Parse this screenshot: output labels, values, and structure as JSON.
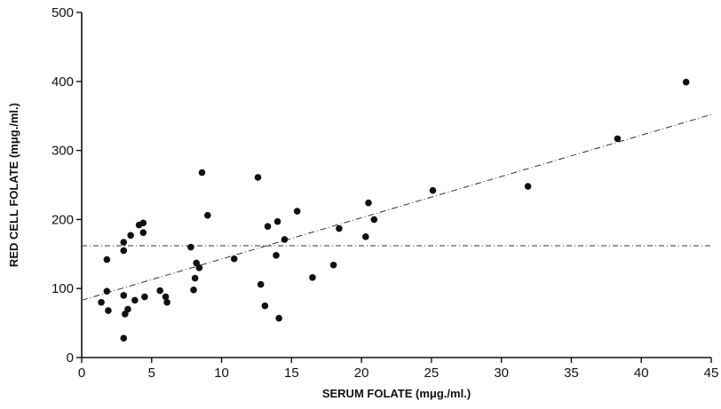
{
  "chart_data": {
    "type": "scatter",
    "xlabel": "SERUM FOLATE (mμg./ml.)",
    "ylabel": "RED CELL FOLATE (mμg./ml.)",
    "xlim": [
      0,
      45
    ],
    "ylim": [
      0,
      500
    ],
    "x_ticks": [
      0,
      5,
      10,
      15,
      20,
      25,
      30,
      35,
      40,
      45
    ],
    "y_ticks": [
      0,
      100,
      200,
      300,
      400,
      500
    ],
    "x_tick_labels": [
      "0",
      "5",
      "10",
      "15",
      "20",
      "25",
      "30",
      "35",
      "40",
      "45"
    ],
    "y_tick_labels": [
      "0",
      "100",
      "200",
      "300",
      "400",
      "500"
    ],
    "grid": false,
    "points": [
      {
        "x": 1.4,
        "y": 80
      },
      {
        "x": 1.8,
        "y": 142
      },
      {
        "x": 1.8,
        "y": 96
      },
      {
        "x": 1.9,
        "y": 68
      },
      {
        "x": 3.0,
        "y": 167
      },
      {
        "x": 3.0,
        "y": 155
      },
      {
        "x": 3.0,
        "y": 90
      },
      {
        "x": 3.0,
        "y": 28
      },
      {
        "x": 3.1,
        "y": 63
      },
      {
        "x": 3.3,
        "y": 70
      },
      {
        "x": 3.5,
        "y": 177
      },
      {
        "x": 3.8,
        "y": 83
      },
      {
        "x": 4.1,
        "y": 192
      },
      {
        "x": 4.4,
        "y": 195
      },
      {
        "x": 4.4,
        "y": 181
      },
      {
        "x": 4.5,
        "y": 88
      },
      {
        "x": 5.6,
        "y": 97
      },
      {
        "x": 6.0,
        "y": 88
      },
      {
        "x": 6.1,
        "y": 80
      },
      {
        "x": 7.8,
        "y": 160
      },
      {
        "x": 8.0,
        "y": 98
      },
      {
        "x": 8.1,
        "y": 115
      },
      {
        "x": 8.2,
        "y": 137
      },
      {
        "x": 8.4,
        "y": 130
      },
      {
        "x": 8.6,
        "y": 268
      },
      {
        "x": 9.0,
        "y": 206
      },
      {
        "x": 10.9,
        "y": 143
      },
      {
        "x": 12.6,
        "y": 261
      },
      {
        "x": 12.8,
        "y": 106
      },
      {
        "x": 13.1,
        "y": 75
      },
      {
        "x": 13.3,
        "y": 190
      },
      {
        "x": 13.9,
        "y": 148
      },
      {
        "x": 14.0,
        "y": 197
      },
      {
        "x": 14.1,
        "y": 57
      },
      {
        "x": 14.5,
        "y": 171
      },
      {
        "x": 15.4,
        "y": 212
      },
      {
        "x": 16.5,
        "y": 116
      },
      {
        "x": 18.0,
        "y": 134
      },
      {
        "x": 18.4,
        "y": 187
      },
      {
        "x": 20.3,
        "y": 175
      },
      {
        "x": 20.5,
        "y": 224
      },
      {
        "x": 20.9,
        "y": 200
      },
      {
        "x": 25.1,
        "y": 242
      },
      {
        "x": 31.9,
        "y": 248
      },
      {
        "x": 38.3,
        "y": 317
      },
      {
        "x": 43.2,
        "y": 399
      }
    ],
    "regression_line": {
      "x1": 0,
      "y1": 83,
      "x2": 45,
      "y2": 352
    },
    "horizontal_line": {
      "y": 162,
      "x1": 0,
      "x2": 45
    }
  }
}
